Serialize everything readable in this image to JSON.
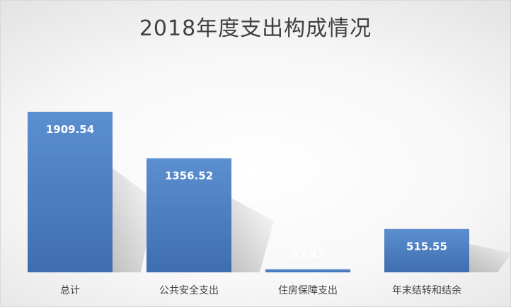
{
  "chart_data": {
    "type": "bar",
    "title": "2018年度支出构成情况",
    "categories": [
      "总计",
      "公共安全支出",
      "住房保障支出",
      "年末结转和结余"
    ],
    "values": [
      1909.54,
      1356.52,
      37.47,
      515.55
    ],
    "value_labels": [
      "1909.54",
      "1356.52",
      "37.47",
      "515.55"
    ],
    "xlabel": "",
    "ylabel": "",
    "ylim": [
      0,
      1909.54
    ],
    "grid": false,
    "legend": "none",
    "colors": {
      "bar_top": "#5b8fd0",
      "bar_bottom": "#3f6eb0",
      "label": "#ffffff",
      "text": "#404040"
    }
  }
}
